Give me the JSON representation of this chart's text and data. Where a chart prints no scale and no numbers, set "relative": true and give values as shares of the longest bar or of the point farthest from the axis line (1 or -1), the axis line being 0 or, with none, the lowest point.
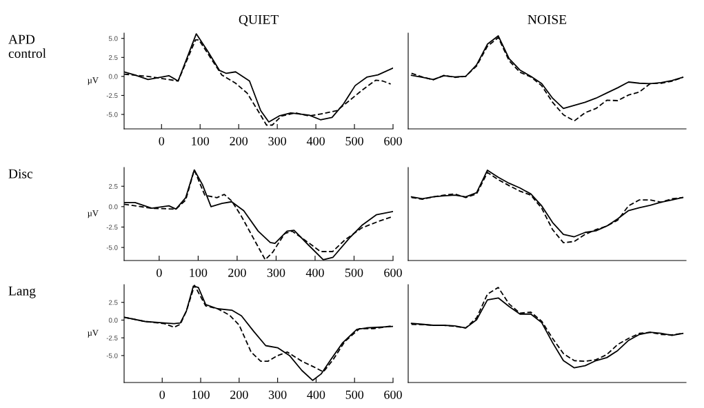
{
  "chart_data": [
    {
      "type": "line",
      "title": "QUIET",
      "ylabel": "µV",
      "annotations": [
        "APD\ncontrol"
      ],
      "xlim": [
        -97,
        600
      ],
      "ylim": [
        -6.9,
        5.7
      ],
      "xticks": [
        0,
        100,
        200,
        300,
        400,
        500,
        600
      ],
      "yticks": [
        {
          "value": 5.0,
          "label": "5.0"
        },
        {
          "value": 2.5,
          "label": "2.5"
        },
        {
          "value": 0,
          "label": "0.0"
        },
        {
          "value": -2.5,
          "label": "-2.5"
        },
        {
          "value": -5.0,
          "label": "-5.0"
        }
      ],
      "series": [
        {
          "color": "#000000",
          "line_style": "solid",
          "x": [
            -97,
            -70,
            -35,
            19,
            43,
            90,
            120,
            150,
            168,
            192,
            228,
            257,
            278,
            305,
            335,
            383,
            412,
            442,
            472,
            502,
            532,
            561,
            600
          ],
          "values": [
            0.6,
            0.2,
            -0.4,
            0.1,
            -0.6,
            5.6,
            3.3,
            0.8,
            0.4,
            0.6,
            -0.6,
            -4.5,
            -6.0,
            -5.2,
            -4.8,
            -5.1,
            -5.7,
            -5.4,
            -3.6,
            -1.2,
            -0.1,
            0.2,
            1.1
          ]
        },
        {
          "color": "#000000",
          "line_style": "dashed",
          "x": [
            -97,
            -35,
            43,
            88,
            97,
            120,
            156,
            192,
            222,
            257,
            272,
            287,
            311,
            347,
            383,
            418,
            454,
            484,
            520,
            555,
            573,
            594
          ],
          "values": [
            0.3,
            0.0,
            -0.6,
            4.8,
            4.8,
            3.0,
            0.2,
            -0.9,
            -2.2,
            -5.1,
            -6.4,
            -6.4,
            -5.2,
            -4.8,
            -5.2,
            -4.9,
            -4.5,
            -3.3,
            -1.8,
            -0.5,
            -0.6,
            -1.0
          ]
        }
      ]
    },
    {
      "type": "line",
      "title": "NOISE",
      "relative": true,
      "categories": [
        null,
        null,
        null,
        null,
        null,
        null,
        null,
        null,
        null,
        null,
        null,
        null,
        null,
        null,
        null,
        null,
        null,
        null,
        null,
        null,
        null,
        null,
        null,
        null,
        null,
        null
      ],
      "series": [
        {
          "color": "#000000",
          "line_style": "solid",
          "values": [
            0.576,
            0.554,
            0.531,
            0.571,
            0.558,
            0.565,
            0.688,
            0.911,
            1.0,
            0.754,
            0.632,
            0.565,
            0.487,
            0.33,
            0.219,
            0.252,
            0.286,
            0.33,
            0.386,
            0.442,
            0.504,
            0.491,
            0.487,
            0.498,
            0.52,
            0.554
          ]
        },
        {
          "color": "#000000",
          "line_style": "dashed",
          "values": [
            0.598,
            0.558,
            0.527,
            0.576,
            0.554,
            0.565,
            0.676,
            0.888,
            0.982,
            0.732,
            0.609,
            0.558,
            0.464,
            0.286,
            0.152,
            0.085,
            0.174,
            0.219,
            0.308,
            0.304,
            0.364,
            0.397,
            0.487,
            0.491,
            0.513,
            0.554
          ]
        }
      ]
    },
    {
      "type": "line",
      "ylabel": "µV",
      "annotations": [
        "Disc"
      ],
      "xlim": [
        -90,
        600
      ],
      "ylim": [
        -6.6,
        4.8
      ],
      "xticks": [
        0,
        100,
        200,
        300,
        400,
        500,
        600
      ],
      "yticks": [
        {
          "value": 2.5,
          "label": "2.5"
        },
        {
          "value": 0,
          "label": "0.0"
        },
        {
          "value": -2.5,
          "label": "-2.5"
        },
        {
          "value": -5.0,
          "label": "-5.0"
        }
      ],
      "series": [
        {
          "color": "#000000",
          "line_style": "solid",
          "x": [
            -90,
            -62,
            -19,
            25,
            43,
            68,
            90,
            111,
            133,
            161,
            186,
            217,
            254,
            285,
            297,
            328,
            346,
            383,
            421,
            446,
            489,
            520,
            557,
            600
          ],
          "values": [
            0.5,
            0.5,
            -0.2,
            0.1,
            -0.3,
            1.1,
            4.5,
            2.7,
            0.0,
            0.4,
            0.6,
            -0.5,
            -3.0,
            -4.4,
            -4.5,
            -3.0,
            -2.9,
            -4.7,
            -6.5,
            -6.2,
            -3.8,
            -2.3,
            -1.0,
            -0.6
          ]
        },
        {
          "color": "#000000",
          "line_style": "dashed",
          "x": [
            -90,
            -19,
            43,
            68,
            90,
            117,
            148,
            167,
            186,
            210,
            241,
            272,
            291,
            322,
            341,
            371,
            414,
            445,
            476,
            520,
            563,
            600
          ],
          "values": [
            0.3,
            -0.2,
            -0.3,
            0.8,
            4.5,
            1.4,
            1.1,
            1.5,
            0.7,
            -1.1,
            -3.8,
            -6.5,
            -5.6,
            -3.3,
            -3.0,
            -4.0,
            -5.5,
            -5.5,
            -4.1,
            -2.6,
            -1.8,
            -1.2
          ]
        }
      ]
    },
    {
      "type": "line",
      "relative": true,
      "categories": [
        null,
        null,
        null,
        null,
        null,
        null,
        null,
        null,
        null,
        null,
        null,
        null,
        null,
        null,
        null,
        null,
        null,
        null,
        null,
        null,
        null,
        null,
        null,
        null,
        null,
        null
      ],
      "series": [
        {
          "color": "#000000",
          "line_style": "solid",
          "values": [
            0.705,
            0.684,
            0.705,
            0.716,
            0.724,
            0.705,
            0.75,
            1.0,
            0.921,
            0.855,
            0.803,
            0.737,
            0.605,
            0.421,
            0.289,
            0.263,
            0.311,
            0.329,
            0.382,
            0.461,
            0.553,
            0.584,
            0.611,
            0.645,
            0.671,
            0.697
          ]
        },
        {
          "color": "#000000",
          "line_style": "dashed",
          "values": [
            0.697,
            0.679,
            0.705,
            0.724,
            0.737,
            0.697,
            0.737,
            0.974,
            0.895,
            0.829,
            0.768,
            0.724,
            0.579,
            0.342,
            0.197,
            0.211,
            0.289,
            0.342,
            0.382,
            0.447,
            0.605,
            0.671,
            0.671,
            0.645,
            0.684,
            0.697
          ]
        }
      ]
    },
    {
      "type": "line",
      "ylabel": "µV",
      "annotations": [
        "Lang"
      ],
      "xlim": [
        -99,
        600
      ],
      "ylim": [
        -8.8,
        5.0
      ],
      "xticks": [
        0,
        100,
        200,
        300,
        400,
        500,
        600
      ],
      "yticks": [
        {
          "value": 2.5,
          "label": "2.5"
        },
        {
          "value": 0,
          "label": "0.0"
        },
        {
          "value": -2.5,
          "label": "-2.5"
        },
        {
          "value": -5.0,
          "label": "-5.0"
        }
      ],
      "series": [
        {
          "color": "#000000",
          "line_style": "solid",
          "x": [
            -99,
            -44,
            6,
            31,
            47,
            63,
            81,
            94,
            113,
            144,
            181,
            206,
            238,
            269,
            300,
            331,
            363,
            391,
            413,
            438,
            469,
            506,
            531,
            600
          ],
          "values": [
            0.4,
            -0.2,
            -0.4,
            -0.5,
            -0.4,
            1.3,
            4.8,
            4.6,
            2.2,
            1.6,
            1.4,
            0.6,
            -1.6,
            -3.6,
            -3.9,
            -5.0,
            -7.1,
            -8.5,
            -7.6,
            -5.6,
            -3.2,
            -1.3,
            -1.1,
            -0.9
          ]
        },
        {
          "color": "#000000",
          "line_style": "dashed",
          "x": [
            -99,
            -44,
            6,
            31,
            47,
            63,
            84,
            113,
            144,
            175,
            200,
            231,
            256,
            275,
            300,
            325,
            363,
            394,
            419,
            444,
            475,
            513,
            550,
            600
          ],
          "values": [
            0.4,
            -0.2,
            -0.5,
            -1.0,
            -0.6,
            1.3,
            4.9,
            2.0,
            1.6,
            0.7,
            -0.7,
            -4.5,
            -5.8,
            -5.8,
            -5.0,
            -4.5,
            -5.8,
            -6.6,
            -7.3,
            -5.6,
            -3.0,
            -1.2,
            -1.2,
            -0.8
          ]
        }
      ]
    },
    {
      "type": "line",
      "relative": true,
      "categories": [
        null,
        null,
        null,
        null,
        null,
        null,
        null,
        null,
        null,
        null,
        null,
        null,
        null,
        null,
        null,
        null,
        null,
        null,
        null,
        null,
        null,
        null,
        null,
        null,
        null,
        null
      ],
      "series": [
        {
          "color": "#000000",
          "line_style": "solid",
          "values": [
            0.623,
            0.613,
            0.602,
            0.602,
            0.596,
            0.574,
            0.66,
            0.87,
            0.89,
            0.8,
            0.72,
            0.72,
            0.63,
            0.42,
            0.23,
            0.155,
            0.177,
            0.23,
            0.262,
            0.336,
            0.443,
            0.506,
            0.528,
            0.517,
            0.496,
            0.517
          ]
        },
        {
          "color": "#000000",
          "line_style": "dashed",
          "values": [
            0.613,
            0.609,
            0.602,
            0.602,
            0.591,
            0.574,
            0.68,
            0.93,
            1.0,
            0.826,
            0.73,
            0.74,
            0.645,
            0.464,
            0.304,
            0.23,
            0.223,
            0.24,
            0.294,
            0.4,
            0.464,
            0.517,
            0.528,
            0.506,
            0.502,
            0.517
          ]
        }
      ]
    }
  ]
}
